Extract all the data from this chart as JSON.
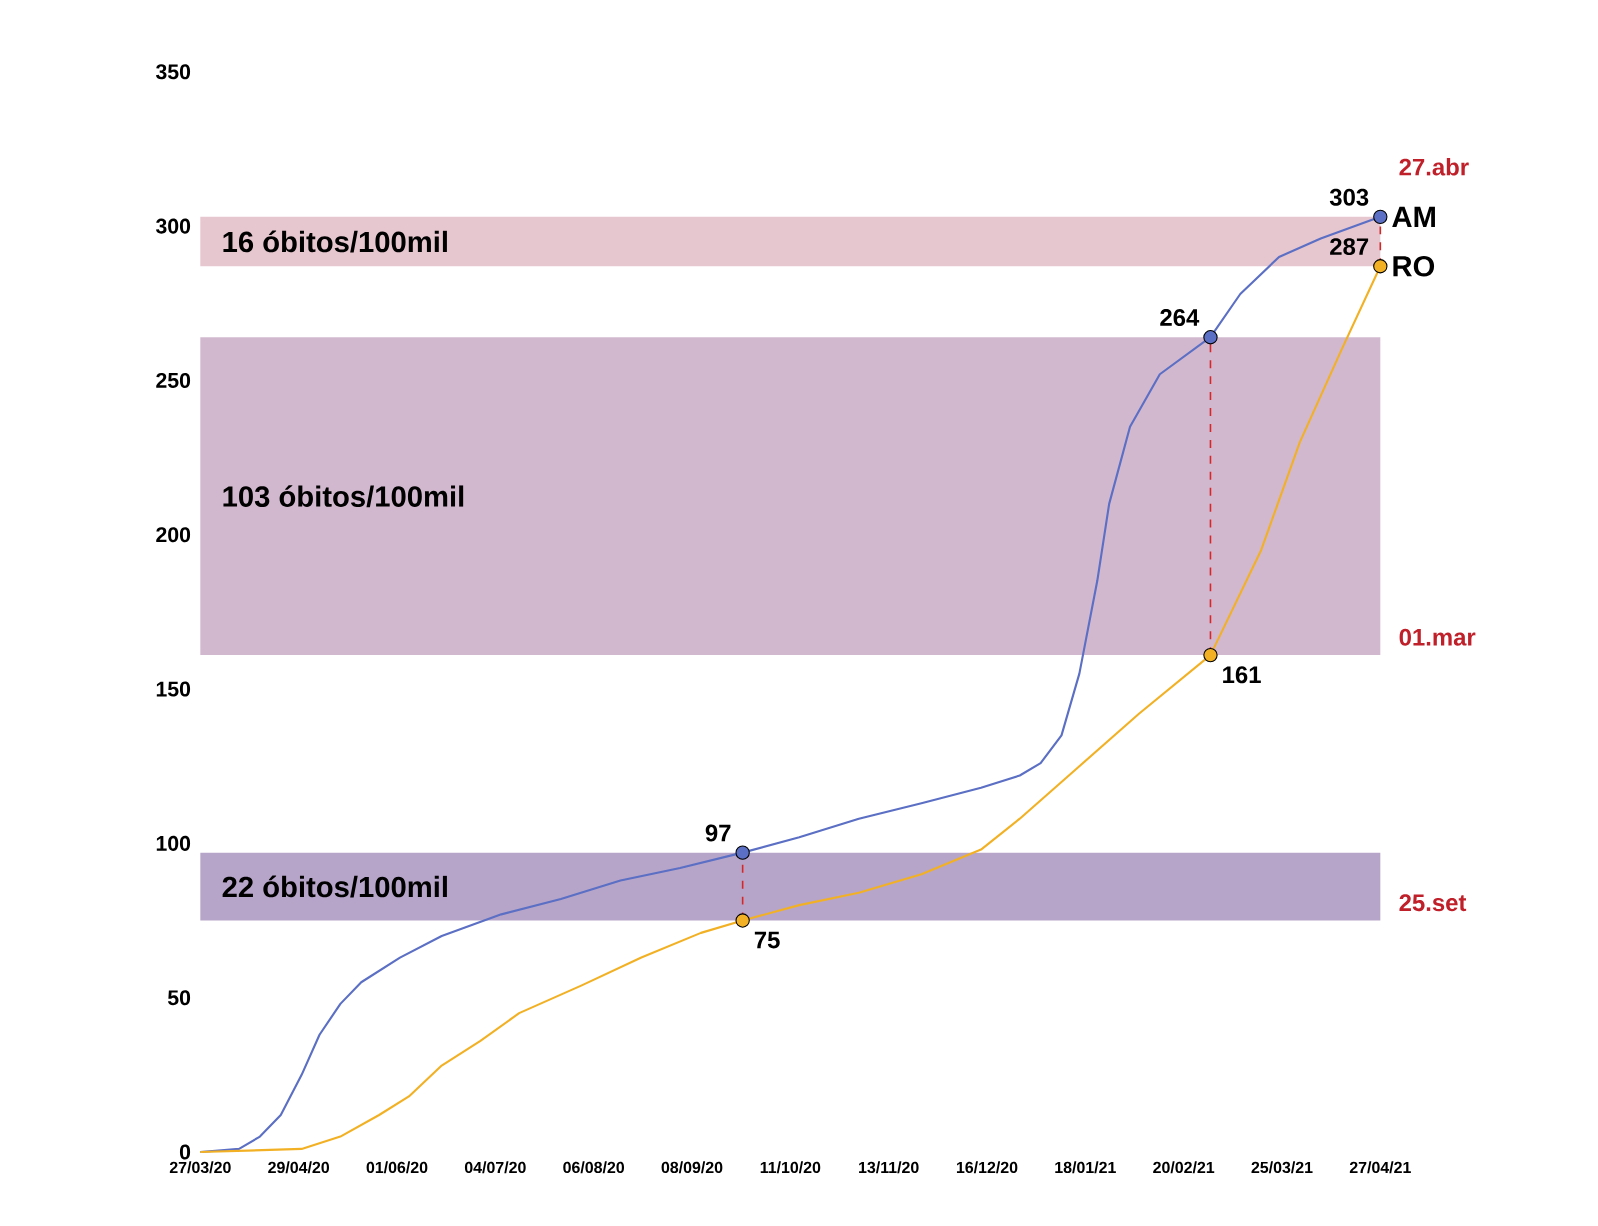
{
  "chart_data": {
    "type": "line",
    "xlim": [
      "2020-03-27",
      "2021-04-27"
    ],
    "ylim": [
      0,
      350
    ],
    "yticks": [
      0,
      50,
      100,
      150,
      200,
      250,
      300,
      350
    ],
    "xticks": [
      {
        "value": "2020-03-27",
        "label": "27/03/20"
      },
      {
        "value": "2020-04-29",
        "label": "29/04/20"
      },
      {
        "value": "2020-06-01",
        "label": "01/06/20"
      },
      {
        "value": "2020-07-04",
        "label": "04/07/20"
      },
      {
        "value": "2020-08-06",
        "label": "06/08/20"
      },
      {
        "value": "2020-09-08",
        "label": "08/09/20"
      },
      {
        "value": "2020-10-11",
        "label": "11/10/20"
      },
      {
        "value": "2020-11-13",
        "label": "13/11/20"
      },
      {
        "value": "2020-12-16",
        "label": "16/12/20"
      },
      {
        "value": "2021-01-18",
        "label": "18/01/21"
      },
      {
        "value": "2021-02-20",
        "label": "20/02/21"
      },
      {
        "value": "2021-03-25",
        "label": "25/03/21"
      },
      {
        "value": "2021-04-27",
        "label": "27/04/21"
      }
    ],
    "bands": [
      {
        "axis": "y",
        "from": 75,
        "to": 97,
        "label": "22 óbitos/100mil",
        "color": "#b7a5c9"
      },
      {
        "axis": "y",
        "from": 161,
        "to": 264,
        "label": "103 óbitos/100mil",
        "color": "#d2b8cf"
      },
      {
        "axis": "y",
        "from": 287,
        "to": 303,
        "label": "16 óbitos/100mil",
        "color": "#e6c6cf"
      }
    ],
    "series": [
      {
        "name": "AM",
        "color": "#5b6fc4",
        "x": [
          "2020-03-27",
          "2020-04-09",
          "2020-04-16",
          "2020-04-23",
          "2020-04-30",
          "2020-05-06",
          "2020-05-13",
          "2020-05-20",
          "2020-06-02",
          "2020-06-16",
          "2020-07-06",
          "2020-07-26",
          "2020-08-15",
          "2020-09-04",
          "2020-09-25",
          "2020-10-14",
          "2020-11-03",
          "2020-11-24",
          "2020-12-14",
          "2020-12-27",
          "2021-01-03",
          "2021-01-10",
          "2021-01-16",
          "2021-01-22",
          "2021-01-26",
          "2021-02-02",
          "2021-02-12",
          "2021-03-01",
          "2021-03-11",
          "2021-03-24",
          "2021-04-07",
          "2021-04-27"
        ],
        "values": [
          0,
          1,
          5,
          12,
          25,
          38,
          48,
          55,
          63,
          70,
          77,
          82,
          88,
          92,
          97,
          102,
          108,
          113,
          118,
          122,
          126,
          135,
          155,
          185,
          210,
          235,
          252,
          264,
          278,
          290,
          296,
          303
        ],
        "value_labels": [
          null,
          null,
          null,
          null,
          null,
          null,
          null,
          null,
          null,
          null,
          null,
          null,
          null,
          null,
          "97",
          null,
          null,
          null,
          null,
          null,
          null,
          null,
          null,
          null,
          null,
          null,
          null,
          "264",
          null,
          null,
          null,
          "303"
        ]
      },
      {
        "name": "RO",
        "color": "#f2b124",
        "x": [
          "2020-03-27",
          "2020-04-30",
          "2020-05-13",
          "2020-05-26",
          "2020-06-05",
          "2020-06-16",
          "2020-06-29",
          "2020-07-12",
          "2020-08-02",
          "2020-08-22",
          "2020-09-11",
          "2020-09-25",
          "2020-10-14",
          "2020-11-03",
          "2020-11-24",
          "2020-12-14",
          "2020-12-27",
          "2021-01-16",
          "2021-02-05",
          "2021-03-01",
          "2021-03-18",
          "2021-03-31",
          "2021-04-14",
          "2021-04-27"
        ],
        "values": [
          0,
          1,
          5,
          12,
          18,
          28,
          36,
          45,
          54,
          63,
          71,
          75,
          80,
          84,
          90,
          98,
          108,
          125,
          142,
          161,
          195,
          230,
          260,
          287
        ],
        "value_labels": [
          null,
          null,
          null,
          null,
          null,
          null,
          null,
          null,
          null,
          null,
          null,
          "75",
          null,
          null,
          null,
          null,
          null,
          null,
          null,
          "161",
          null,
          null,
          null,
          "287"
        ]
      },
      {
        "color": "#d62728",
        "line_style": "dashed",
        "x": [
          "2020-09-25",
          "2020-09-25"
        ],
        "values": [
          75,
          97
        ]
      },
      {
        "color": "#d62728",
        "line_style": "dashed",
        "x": [
          "2021-03-01",
          "2021-03-01"
        ],
        "values": [
          161,
          264
        ]
      },
      {
        "color": "#d62728",
        "line_style": "dashed",
        "x": [
          "2021-04-27",
          "2021-04-27"
        ],
        "values": [
          287,
          303
        ]
      }
    ],
    "annotations": [
      "25.set",
      "01.mar",
      "27.abr"
    ],
    "grid": false,
    "legend": false,
    "marker": "none"
  }
}
